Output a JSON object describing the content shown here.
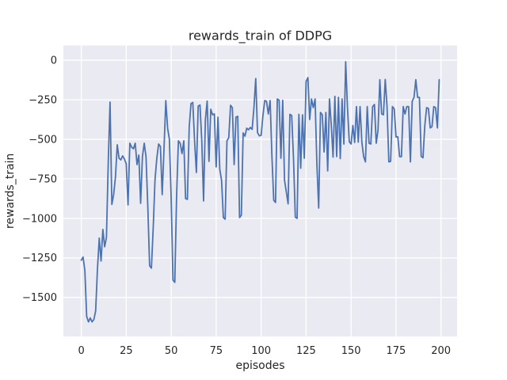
{
  "figure": {
    "title": "rewards_train of DDPG",
    "xlabel": "episodes",
    "ylabel": "rewards_train"
  },
  "chart_data": {
    "type": "line",
    "title": "rewards_train of DDPG",
    "xlabel": "episodes",
    "ylabel": "rewards_train",
    "legend": false,
    "grid": true,
    "style": "seaborn-darkgrid",
    "colors": {
      "line": "#4c72b0",
      "axes_background": "#eaeaf2",
      "grid": "#ffffff",
      "text": "#262626",
      "figure_background": "#ffffff"
    },
    "x_ticks": [
      0,
      25,
      50,
      75,
      100,
      125,
      150,
      175,
      200
    ],
    "x_tick_labels": [
      "0",
      "25",
      "50",
      "75",
      "100",
      "125",
      "150",
      "175",
      "200"
    ],
    "y_ticks": [
      0,
      -250,
      -500,
      -750,
      -1000,
      -1250,
      -1500
    ],
    "y_tick_labels": [
      "0",
      "−250",
      "−500",
      "−750",
      "−1000",
      "−1250",
      "−1500"
    ],
    "xlim": [
      -9.95,
      208.95
    ],
    "ylim": [
      -1747,
      93
    ],
    "x_is_index": true,
    "series": [
      {
        "name": "rewards_train",
        "values": [
          -1265,
          -1245,
          -1330,
          -1620,
          -1655,
          -1630,
          -1655,
          -1640,
          -1585,
          -1320,
          -1125,
          -1270,
          -1070,
          -1180,
          -1120,
          -645,
          -265,
          -912,
          -850,
          -740,
          -535,
          -620,
          -630,
          -605,
          -625,
          -655,
          -915,
          -525,
          -550,
          -560,
          -525,
          -660,
          -600,
          -905,
          -610,
          -525,
          -610,
          -930,
          -1300,
          -1315,
          -1060,
          -755,
          -620,
          -530,
          -545,
          -850,
          -560,
          -255,
          -430,
          -500,
          -880,
          -1390,
          -1405,
          -860,
          -510,
          -525,
          -590,
          -510,
          -875,
          -880,
          -425,
          -275,
          -267,
          -510,
          -710,
          -290,
          -283,
          -510,
          -890,
          -375,
          -258,
          -640,
          -310,
          -345,
          -340,
          -675,
          -360,
          -690,
          -760,
          -995,
          -1005,
          -510,
          -490,
          -285,
          -300,
          -660,
          -360,
          -355,
          -995,
          -980,
          -460,
          -480,
          -430,
          -440,
          -425,
          -437,
          -300,
          -116,
          -458,
          -478,
          -475,
          -350,
          -255,
          -260,
          -340,
          -255,
          -607,
          -885,
          -900,
          -245,
          -253,
          -620,
          -253,
          -758,
          -833,
          -908,
          -342,
          -350,
          -620,
          -992,
          -1000,
          -342,
          -683,
          -345,
          -620,
          -133,
          -110,
          -375,
          -245,
          -300,
          -245,
          -660,
          -935,
          -330,
          -345,
          -580,
          -330,
          -700,
          -245,
          -410,
          -613,
          -228,
          -610,
          -235,
          -622,
          -245,
          -530,
          -10,
          -300,
          -515,
          -530,
          -413,
          -520,
          -293,
          -518,
          -293,
          -518,
          -610,
          -643,
          -293,
          -525,
          -530,
          -293,
          -280,
          -525,
          -440,
          -123,
          -340,
          -345,
          -122,
          -293,
          -643,
          -640,
          -293,
          -308,
          -485,
          -485,
          -610,
          -610,
          -293,
          -340,
          -293,
          -293,
          -643,
          -260,
          -235,
          -123,
          -235,
          -235,
          -608,
          -617,
          -413,
          -300,
          -305,
          -428,
          -420,
          -293,
          -300,
          -428,
          -123
        ]
      }
    ]
  }
}
